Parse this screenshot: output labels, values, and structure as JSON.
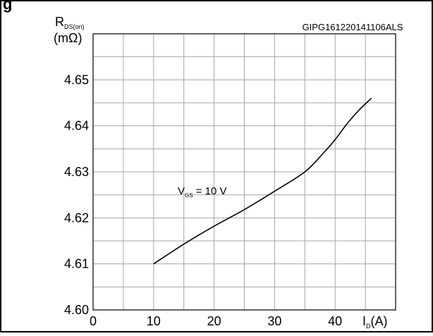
{
  "figure_title_fragment": "g",
  "chart_data": {
    "type": "line",
    "id_code": "GIPG161220141106ALS",
    "ylabel": {
      "main": "R",
      "sub": "DS(on)",
      "unit": "(mΩ)"
    },
    "xlabel": {
      "main": "I",
      "sub": "D",
      "unit": "(A)"
    },
    "xlim": [
      0,
      50
    ],
    "ylim": [
      4.6,
      4.66
    ],
    "x_ticks": [
      0,
      10,
      20,
      30,
      40
    ],
    "x_tick_labels": [
      "0",
      "10",
      "20",
      "30",
      "40"
    ],
    "y_ticks": [
      4.6,
      4.61,
      4.62,
      4.63,
      4.64,
      4.65
    ],
    "y_tick_labels": [
      "4.60",
      "4.61",
      "4.62",
      "4.63",
      "4.64",
      "4.65"
    ],
    "grid": true,
    "annotation": {
      "main": "V",
      "sub": "GS",
      "rest": " = 10 V"
    },
    "series": [
      {
        "x": [
          10,
          15,
          20,
          25,
          30,
          35,
          38,
          40,
          42,
          44,
          46
        ],
        "y": [
          4.61,
          4.6143,
          4.6182,
          4.6218,
          4.6258,
          4.63,
          4.634,
          4.637,
          4.6405,
          4.6435,
          4.646
        ]
      }
    ]
  }
}
